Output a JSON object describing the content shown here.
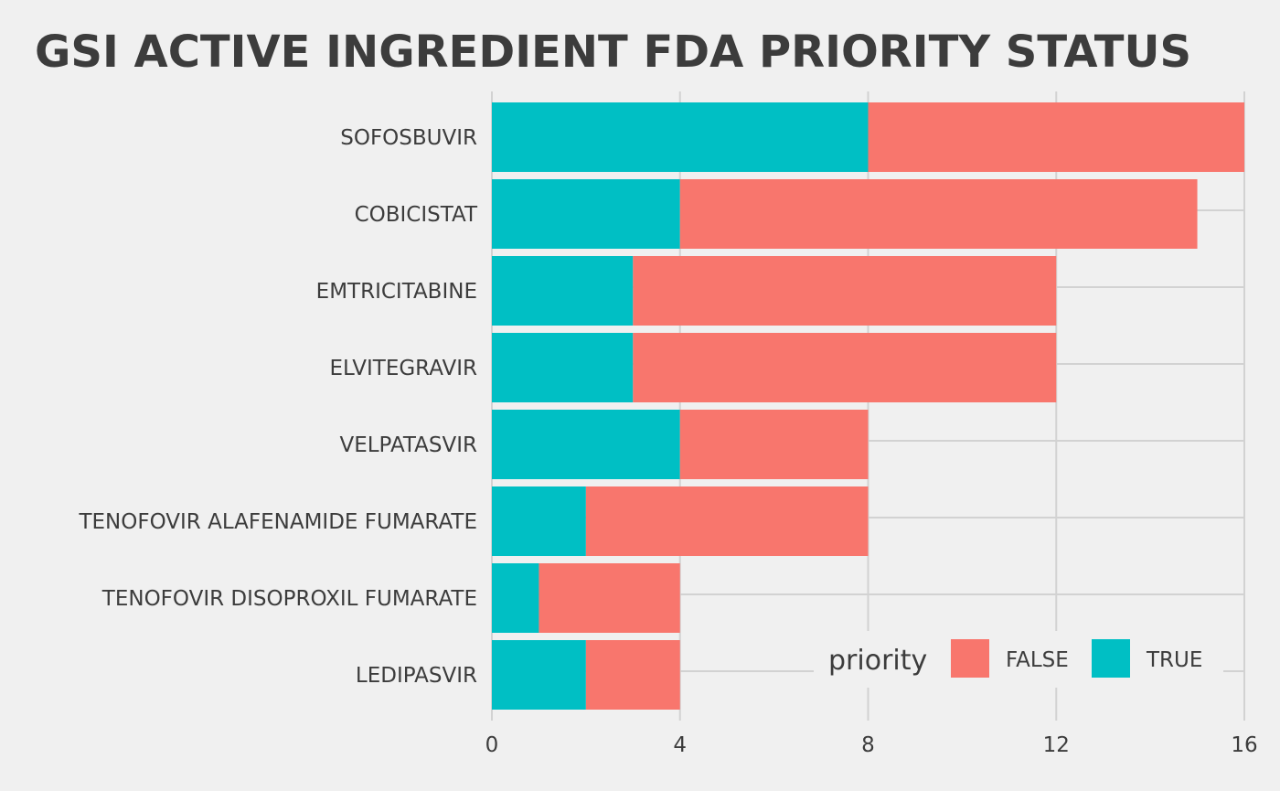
{
  "chart_data": {
    "type": "bar",
    "orientation": "horizontal",
    "stacked": true,
    "title": "GSI ACTIVE INGREDIENT FDA PRIORITY STATUS",
    "xlabel": "",
    "ylabel": "",
    "categories": [
      "SOFOSBUVIR",
      "COBICISTAT",
      "EMTRICITABINE",
      "ELVITEGRAVIR",
      "VELPATASVIR",
      "TENOFOVIR ALAFENAMIDE FUMARATE",
      "TENOFOVIR DISOPROXIL FUMARATE",
      "LEDIPASVIR"
    ],
    "series": [
      {
        "name": "TRUE",
        "color": "#00BFC4",
        "values": [
          8,
          4,
          3,
          3,
          4,
          2,
          1,
          2
        ]
      },
      {
        "name": "FALSE",
        "color": "#F8766D",
        "values": [
          8,
          11,
          9,
          9,
          4,
          6,
          3,
          2
        ]
      }
    ],
    "xlim": [
      0,
      16
    ],
    "xticks": [
      0,
      4,
      8,
      12,
      16
    ],
    "grid": true,
    "legend": {
      "title": "priority",
      "position": "bottom-right",
      "entries": [
        {
          "label": "FALSE",
          "color": "#F8766D"
        },
        {
          "label": "TRUE",
          "color": "#00BFC4"
        }
      ]
    }
  }
}
